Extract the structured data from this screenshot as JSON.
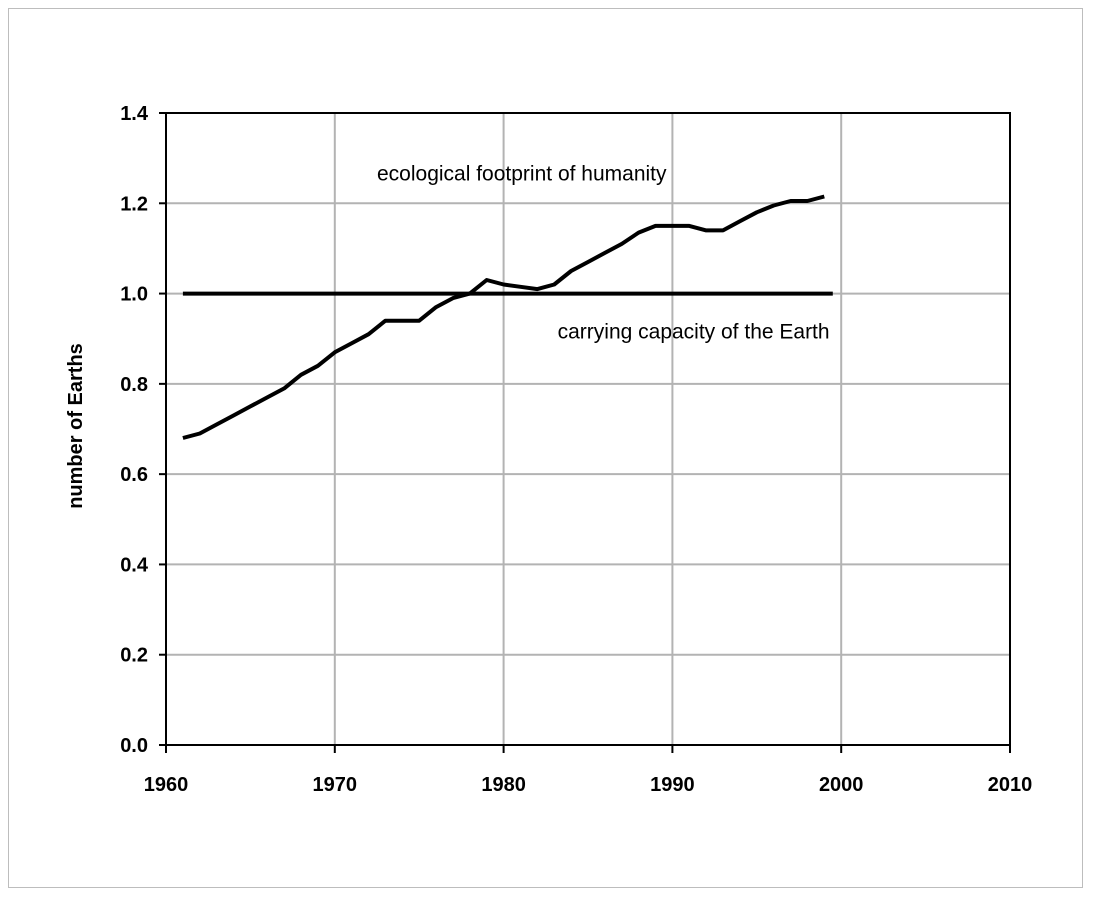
{
  "chart_data": {
    "type": "line",
    "title": "",
    "xlabel": "",
    "ylabel": "number of Earths",
    "xlim": [
      1960,
      2010
    ],
    "ylim": [
      0.0,
      1.4
    ],
    "xticks": [
      1960,
      1970,
      1980,
      1990,
      2000,
      2010
    ],
    "xtick_labels": [
      "1960",
      "1970",
      "1980",
      "1990",
      "2000",
      "2010"
    ],
    "yticks": [
      0.0,
      0.2,
      0.4,
      0.6,
      0.8,
      1.0,
      1.2,
      1.4
    ],
    "ytick_labels": [
      "0.0",
      "0.2",
      "0.4",
      "0.6",
      "0.8",
      "1.0",
      "1.2",
      "1.4"
    ],
    "grid": true,
    "series": [
      {
        "name": "ecological footprint of humanity",
        "color": "#000000",
        "x": [
          1961,
          1962,
          1963,
          1964,
          1965,
          1966,
          1967,
          1968,
          1969,
          1970,
          1971,
          1972,
          1973,
          1974,
          1975,
          1976,
          1977,
          1978,
          1979,
          1980,
          1981,
          1982,
          1983,
          1984,
          1985,
          1986,
          1987,
          1988,
          1989,
          1990,
          1991,
          1992,
          1993,
          1994,
          1995,
          1996,
          1997,
          1998,
          1999
        ],
        "y": [
          0.68,
          0.69,
          0.71,
          0.73,
          0.75,
          0.77,
          0.79,
          0.82,
          0.84,
          0.87,
          0.89,
          0.91,
          0.94,
          0.94,
          0.94,
          0.97,
          0.99,
          1.0,
          1.03,
          1.02,
          1.015,
          1.01,
          1.02,
          1.05,
          1.07,
          1.09,
          1.11,
          1.135,
          1.15,
          1.15,
          1.15,
          1.14,
          1.14,
          1.16,
          1.18,
          1.195,
          1.205,
          1.205,
          1.215
        ]
      },
      {
        "name": "carrying capacity of the Earth",
        "color": "#000000",
        "x": [
          1961,
          1999.5
        ],
        "y": [
          1.0,
          1.0
        ]
      }
    ],
    "annotations": [
      {
        "text": "ecological footprint of humanity",
        "x": 1972.5,
        "y": 1.25
      },
      {
        "text": "carrying capacity of the Earth",
        "x": 1983.2,
        "y": 0.9
      }
    ]
  }
}
